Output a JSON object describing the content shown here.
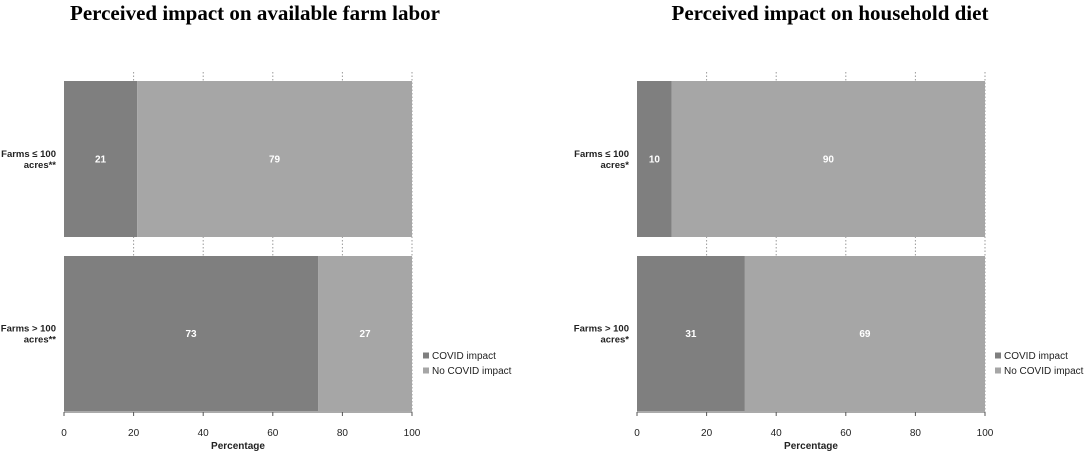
{
  "chart_data": [
    {
      "type": "bar",
      "orientation": "horizontal",
      "stacked": true,
      "title": "Perceived impact on available farm labor",
      "xlabel": "Percentage",
      "ylabel": "",
      "xlim": [
        0,
        100
      ],
      "ticks": [
        "0",
        "20",
        "40",
        "60",
        "80",
        "100"
      ],
      "categories": [
        "Farms ≤ 100 acres**",
        "Farms > 100 acres**"
      ],
      "category_lines": [
        [
          "Farms ≤ 100",
          "acres**"
        ],
        [
          "Farms > 100",
          "acres**"
        ]
      ],
      "series": [
        {
          "name": "COVID impact",
          "values": [
            21,
            73
          ],
          "color": "#7f7f7f"
        },
        {
          "name": "No COVID impact",
          "values": [
            79,
            27
          ],
          "color": "#a6a6a6"
        }
      ],
      "grid": "vertical dotted",
      "legend": "bottom-right"
    },
    {
      "type": "bar",
      "orientation": "horizontal",
      "stacked": true,
      "title": "Perceived impact on household diet",
      "xlabel": "Percentage",
      "ylabel": "",
      "xlim": [
        0,
        100
      ],
      "ticks": [
        "0",
        "20",
        "40",
        "60",
        "80",
        "100"
      ],
      "categories": [
        "Farms ≤ 100 acres*",
        "Farms > 100 acres*"
      ],
      "category_lines": [
        [
          "Farms ≤ 100",
          "acres*"
        ],
        [
          "Farms > 100",
          "acres*"
        ]
      ],
      "series": [
        {
          "name": "COVID impact",
          "values": [
            10,
            31
          ],
          "color": "#7f7f7f"
        },
        {
          "name": "No COVID impact",
          "values": [
            90,
            69
          ],
          "color": "#a6a6a6"
        }
      ],
      "grid": "vertical dotted",
      "legend": "bottom-right"
    }
  ]
}
